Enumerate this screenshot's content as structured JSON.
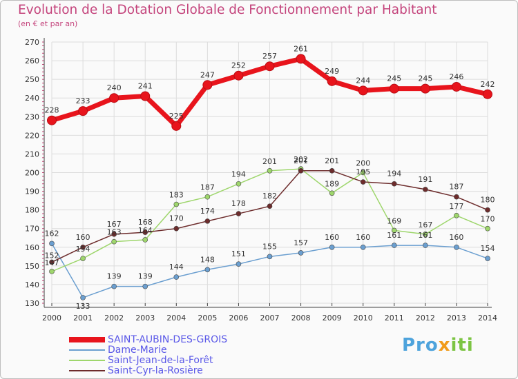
{
  "title": "Evolution de la Dotation Globale de Fonctionnement par Habitant",
  "subtitle": "(en € et par an)",
  "brand": {
    "part1": "Pro",
    "part2": "x",
    "part3": "iti"
  },
  "colors": {
    "title": "#c4447c",
    "legend_text": "#5a58e8",
    "grid": "#dcdcdc",
    "axis": "#404040"
  },
  "chart_data": {
    "type": "line",
    "title": "Evolution de la Dotation Globale de Fonctionnement par Habitant",
    "xlabel": "",
    "ylabel": "(en € et par an)",
    "x": [
      2000,
      2001,
      2002,
      2003,
      2004,
      2005,
      2006,
      2007,
      2008,
      2009,
      2010,
      2011,
      2012,
      2013,
      2014
    ],
    "ylim": [
      130,
      270
    ],
    "yticks": [
      130,
      140,
      150,
      160,
      170,
      180,
      190,
      200,
      210,
      220,
      230,
      240,
      250,
      260,
      270
    ],
    "grid": true,
    "series": [
      {
        "name": "SAINT-AUBIN-DES-GROIS",
        "color": "#e8141c",
        "values": [
          228,
          233,
          240,
          241,
          225,
          247,
          252,
          257,
          261,
          249,
          244,
          245,
          245,
          246,
          242
        ]
      },
      {
        "name": "Dame-Marie",
        "color": "#6b9fd0",
        "values": [
          162,
          133,
          139,
          139,
          144,
          148,
          151,
          155,
          157,
          160,
          160,
          161,
          161,
          160,
          154
        ]
      },
      {
        "name": "Saint-Jean-de-la-Forêt",
        "color": "#9ed66c",
        "values": [
          147,
          154,
          163,
          164,
          183,
          187,
          194,
          201,
          202,
          189,
          200,
          169,
          167,
          177,
          170
        ]
      },
      {
        "name": "Saint-Cyr-la-Rosière",
        "color": "#6d2c2c",
        "values": [
          152,
          160,
          167,
          168,
          170,
          174,
          178,
          182,
          201,
          201,
          195,
          194,
          191,
          187,
          180
        ]
      }
    ]
  }
}
